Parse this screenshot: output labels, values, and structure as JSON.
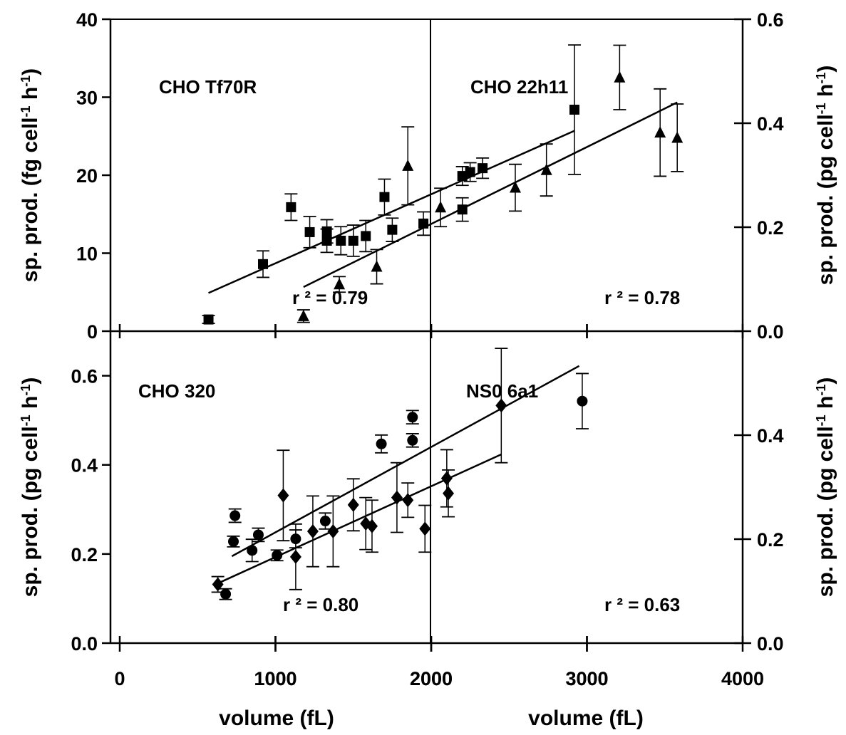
{
  "chart_data": [
    {
      "type": "scatter",
      "panel": "top-left",
      "label": "CHO Tf70R",
      "r2_text": "r ² = 0.79",
      "xlim": [
        0,
        4000
      ],
      "ylim": [
        0,
        40
      ],
      "ylabel_parts": [
        "sp. prod. (fg cell",
        "-1",
        " h",
        "-1",
        ")"
      ],
      "yticks": [
        0,
        10,
        20,
        30,
        40
      ],
      "ytick_labels": [
        "0",
        "10",
        "20",
        "30",
        "40"
      ],
      "marker": "square",
      "points": [
        {
          "x": 570,
          "y": 1.5,
          "err": 0.5
        },
        {
          "x": 920,
          "y": 8.6,
          "err": 1.7
        },
        {
          "x": 1100,
          "y": 15.9,
          "err": 1.7
        },
        {
          "x": 1220,
          "y": 12.7,
          "err": 2.0
        },
        {
          "x": 1330,
          "y": 12.8,
          "err": 1.5
        },
        {
          "x": 1330,
          "y": 11.6,
          "err": 1.5
        },
        {
          "x": 1420,
          "y": 11.6,
          "err": 1.8
        },
        {
          "x": 1500,
          "y": 11.6,
          "err": 2.0
        },
        {
          "x": 1580,
          "y": 12.2,
          "err": 2.0
        },
        {
          "x": 1700,
          "y": 17.2,
          "err": 2.3
        },
        {
          "x": 1750,
          "y": 13.0,
          "err": 1.5
        },
        {
          "x": 1950,
          "y": 13.8,
          "err": 1.5
        },
        {
          "x": 2200,
          "y": 15.6,
          "err": 1.5
        },
        {
          "x": 2200,
          "y": 19.9,
          "err": 1.2
        },
        {
          "x": 2250,
          "y": 20.4,
          "err": 1.2
        },
        {
          "x": 2330,
          "y": 20.9,
          "err": 1.3
        },
        {
          "x": 2920,
          "y": 28.4,
          "err": 8.3
        }
      ],
      "fit": [
        [
          570,
          4.9
        ],
        [
          2920,
          25.7
        ]
      ]
    },
    {
      "type": "scatter",
      "panel": "top-right",
      "label": "CHO 22h11",
      "r2_text": "r ² = 0.78",
      "xlim": [
        0,
        4000
      ],
      "ylim": [
        0,
        0.6
      ],
      "ylabel_parts": [
        "sp. prod. (pg cell",
        "-1",
        " h",
        "-1",
        ")"
      ],
      "yticks": [
        0,
        0.2,
        0.4,
        0.6
      ],
      "ytick_labels": [
        "0.0",
        "0.2",
        "0.4",
        "0.6"
      ],
      "marker": "triangle",
      "points": [
        {
          "x": 1180,
          "y": 0.029,
          "err": 0.012
        },
        {
          "x": 1410,
          "y": 0.09,
          "err": 0.015
        },
        {
          "x": 1650,
          "y": 0.124,
          "err": 0.033
        },
        {
          "x": 1850,
          "y": 0.318,
          "err": 0.075
        },
        {
          "x": 2060,
          "y": 0.238,
          "err": 0.037
        },
        {
          "x": 2540,
          "y": 0.276,
          "err": 0.045
        },
        {
          "x": 2740,
          "y": 0.31,
          "err": 0.05
        },
        {
          "x": 3210,
          "y": 0.488,
          "err": 0.062
        },
        {
          "x": 3470,
          "y": 0.382,
          "err": 0.084
        },
        {
          "x": 3580,
          "y": 0.372,
          "err": 0.065
        }
      ],
      "fit": [
        [
          1180,
          0.085
        ],
        [
          3580,
          0.44
        ]
      ]
    },
    {
      "type": "scatter",
      "panel": "bottom-left",
      "label": "CHO 320",
      "r2_text": "r ² = 0.80",
      "xlim": [
        0,
        4000
      ],
      "ylim": [
        0,
        0.7
      ],
      "xticks": [
        0,
        1000,
        2000,
        3000
      ],
      "xtick_labels": [
        "0",
        "1000",
        "2000",
        "3000"
      ],
      "xlabel": "volume (fL)",
      "ylabel_parts": [
        "sp. prod. (pg cell",
        "-1",
        " h",
        "-1",
        ")"
      ],
      "yticks": [
        0,
        0.2,
        0.4,
        0.6
      ],
      "ytick_labels": [
        "0.0",
        "0.2",
        "0.4",
        "0.6"
      ],
      "marker": "circle",
      "points": [
        {
          "x": 680,
          "y": 0.11,
          "err": 0.012
        },
        {
          "x": 730,
          "y": 0.228,
          "err": 0.012
        },
        {
          "x": 740,
          "y": 0.286,
          "err": 0.015
        },
        {
          "x": 850,
          "y": 0.208,
          "err": 0.025
        },
        {
          "x": 890,
          "y": 0.243,
          "err": 0.015
        },
        {
          "x": 1010,
          "y": 0.197,
          "err": 0.012
        },
        {
          "x": 1130,
          "y": 0.234,
          "err": 0.02
        },
        {
          "x": 1320,
          "y": 0.274,
          "err": 0.018
        },
        {
          "x": 1680,
          "y": 0.447,
          "err": 0.02
        },
        {
          "x": 1880,
          "y": 0.507,
          "err": 0.015
        },
        {
          "x": 1880,
          "y": 0.455,
          "err": 0.015
        },
        {
          "x": 2970,
          "y": 0.543,
          "err": 0.062
        }
      ],
      "fit": [
        [
          720,
          0.195
        ],
        [
          2950,
          0.622
        ]
      ]
    },
    {
      "type": "scatter",
      "panel": "bottom-right",
      "label": "NS0 6a1",
      "r2_text": "r ² = 0.63",
      "xlim": [
        0,
        4000
      ],
      "ylim": [
        0,
        0.6
      ],
      "xticks": [
        1000,
        2000,
        3000,
        4000
      ],
      "xtick_labels": [
        "1000",
        "2000",
        "3000",
        "4000"
      ],
      "xlabel": "volume (fL)",
      "ylabel_parts": [
        "sp. prod. (pg cell",
        "-1",
        " h",
        "-1",
        ")"
      ],
      "yticks": [
        0,
        0.2,
        0.4
      ],
      "ytick_labels": [
        "0.0",
        "0.2",
        "0.4"
      ],
      "marker": "diamond",
      "points": [
        {
          "x": 630,
          "y": 0.113,
          "err": 0.015
        },
        {
          "x": 1050,
          "y": 0.284,
          "err": 0.087
        },
        {
          "x": 1130,
          "y": 0.166,
          "err": 0.063
        },
        {
          "x": 1240,
          "y": 0.215,
          "err": 0.068
        },
        {
          "x": 1370,
          "y": 0.215,
          "err": 0.068
        },
        {
          "x": 1500,
          "y": 0.266,
          "err": 0.05
        },
        {
          "x": 1580,
          "y": 0.23,
          "err": 0.05
        },
        {
          "x": 1620,
          "y": 0.225,
          "err": 0.05
        },
        {
          "x": 1780,
          "y": 0.28,
          "err": 0.067
        },
        {
          "x": 1850,
          "y": 0.275,
          "err": 0.033
        },
        {
          "x": 1960,
          "y": 0.22,
          "err": 0.045
        },
        {
          "x": 2100,
          "y": 0.317,
          "err": 0.055
        },
        {
          "x": 2110,
          "y": 0.288,
          "err": 0.045
        },
        {
          "x": 2450,
          "y": 0.457,
          "err": 0.11
        }
      ],
      "fit": [
        [
          630,
          0.115
        ],
        [
          2450,
          0.363
        ]
      ]
    }
  ]
}
